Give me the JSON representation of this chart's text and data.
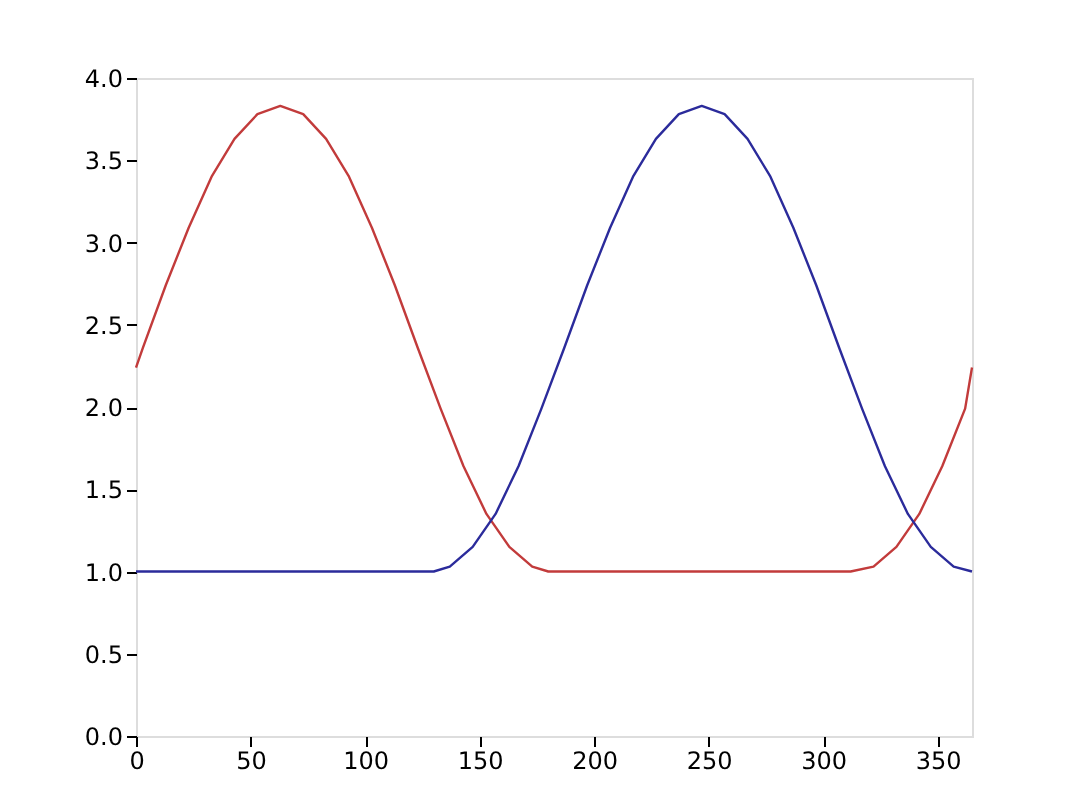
{
  "chart_data": {
    "type": "line",
    "series": [
      {
        "color": "#c23b3b",
        "x": [
          0,
          3,
          13,
          23,
          33,
          43,
          53,
          63,
          73,
          83,
          93,
          103,
          113,
          123,
          133,
          143,
          153,
          163,
          173,
          180,
          312,
          322,
          332,
          342,
          352,
          362,
          365
        ],
        "values": [
          2.24,
          2.36,
          2.74,
          3.09,
          3.4,
          3.63,
          3.78,
          3.83,
          3.78,
          3.63,
          3.4,
          3.09,
          2.74,
          2.36,
          1.99,
          1.64,
          1.35,
          1.15,
          1.03,
          1.0,
          1.0,
          1.03,
          1.15,
          1.35,
          1.64,
          1.99,
          2.24
        ]
      },
      {
        "color": "#2b2b9b",
        "x": [
          0,
          130,
          137,
          147,
          157,
          167,
          177,
          187,
          197,
          207,
          217,
          227,
          237,
          247,
          257,
          267,
          277,
          287,
          297,
          307,
          317,
          327,
          337,
          347,
          357,
          365
        ],
        "values": [
          1.0,
          1.0,
          1.03,
          1.15,
          1.35,
          1.64,
          1.99,
          2.36,
          2.74,
          3.09,
          3.4,
          3.63,
          3.78,
          3.83,
          3.78,
          3.63,
          3.4,
          3.09,
          2.74,
          2.36,
          1.99,
          1.64,
          1.35,
          1.15,
          1.03,
          1.0
        ]
      }
    ],
    "xlim": [
      0,
      365
    ],
    "xticks": [
      0,
      50,
      100,
      150,
      200,
      250,
      300,
      350
    ],
    "ylim": [
      0,
      4
    ],
    "yticks": [
      {
        "value": 0,
        "label": "0.0"
      },
      0.5,
      {
        "value": 1,
        "label": "1.0"
      },
      1.5,
      {
        "value": 2,
        "label": "2.0"
      },
      2.5,
      {
        "value": 3,
        "label": "3.0"
      },
      3.5,
      {
        "value": 4,
        "label": "4.0"
      }
    ],
    "grid": false,
    "legend": false,
    "marker": "none",
    "line_style": "solid"
  }
}
